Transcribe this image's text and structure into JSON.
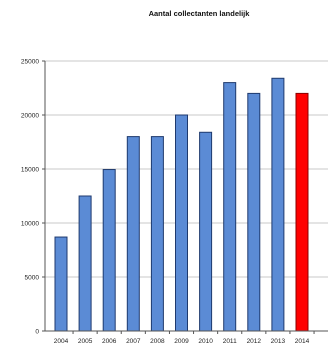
{
  "chart_data": {
    "type": "bar",
    "title": "Aantal collectanten landelijk",
    "xlabel": "",
    "ylabel": "",
    "categories": [
      "2004",
      "2005",
      "2006",
      "2007",
      "2008",
      "2009",
      "2010",
      "2011",
      "2012",
      "2013",
      "2014"
    ],
    "series": [
      {
        "values": [
          8700,
          12500,
          14950,
          18000,
          18000,
          20000,
          18400,
          23000,
          22000,
          23400,
          22000
        ]
      }
    ],
    "highlight_index": 10,
    "ylim": [
      0,
      25000
    ],
    "yticks": [
      0,
      5000,
      10000,
      15000,
      20000,
      25000
    ],
    "grid": true,
    "legend": "none",
    "colors": {
      "bar": "#5b8bd5",
      "bar_edge": "#1f3a6e",
      "highlight": "#ff0000",
      "highlight_edge": "#8a0000",
      "grid": "#c8c8c8",
      "axis": "#555555"
    }
  }
}
